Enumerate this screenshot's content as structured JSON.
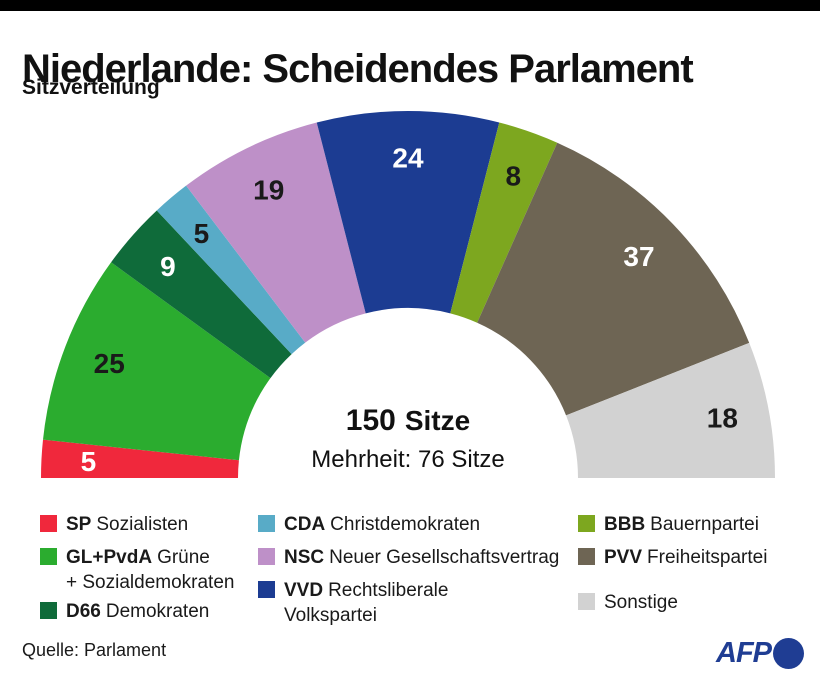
{
  "header": {
    "title": "Niederlande: Scheidendes Parlament",
    "subtitle": "Sitzverteilung"
  },
  "chart_data": {
    "type": "pie",
    "variant": "half-donut-parliament",
    "title": "Niederlande: Scheidendes Parlament — Sitzverteilung",
    "total_seats": 150,
    "parties": [
      "SP",
      "GL+PvdA",
      "D66",
      "CDA",
      "NSC",
      "VVD",
      "BBB",
      "PVV",
      "Sonstige"
    ],
    "values": [
      5,
      25,
      9,
      5,
      19,
      24,
      8,
      37,
      18
    ],
    "colors": [
      "#F0283C",
      "#2BAC2F",
      "#0F6B3A",
      "#58ABC7",
      "#BE90C8",
      "#1C3C92",
      "#7DA71F",
      "#6E6554",
      "#D2D2D2"
    ],
    "label_colors": [
      "#ffffff",
      "#1a1a1a",
      "#ffffff",
      "#1a1a1a",
      "#1a1a1a",
      "#ffffff",
      "#1a1a1a",
      "#ffffff",
      "#1a1a1a"
    ],
    "layout": {
      "direction": "left-to-right",
      "arc_degrees": 180,
      "labels_inside": true
    },
    "center": {
      "total": "150",
      "total_suffix": "Sitze",
      "majority": "Mehrheit: 76 Sitze"
    }
  },
  "legend": {
    "columns": [
      [
        {
          "abbr": "SP",
          "name": "Sozialisten",
          "line2": "",
          "color": "#F0283C"
        },
        {
          "abbr": "GL+PvdA",
          "name": "Grüne",
          "line2": "+ Sozialdemokraten",
          "color": "#2BAC2F"
        },
        {
          "abbr": "D66",
          "name": "Demokraten",
          "line2": "",
          "color": "#0F6B3A"
        }
      ],
      [
        {
          "abbr": "CDA",
          "name": "Christdemokraten",
          "line2": "",
          "color": "#58ABC7"
        },
        {
          "abbr": "NSC",
          "name": "Neuer Gesellschaftsvertrag",
          "line2": "",
          "color": "#BE90C8"
        },
        {
          "abbr": "VVD",
          "name": "Rechtsliberale",
          "line2": "Volkspartei",
          "color": "#1C3C92"
        }
      ],
      [
        {
          "abbr": "BBB",
          "name": "Bauernpartei",
          "line2": "",
          "color": "#7DA71F"
        },
        {
          "abbr": "PVV",
          "name": "Freiheitspartei",
          "line2": "",
          "color": "#6E6554"
        },
        {
          "abbr": "",
          "name": "Sonstige",
          "line2": "",
          "color": "#D2D2D2"
        }
      ]
    ]
  },
  "footer": {
    "source": "Quelle: Parlament",
    "logo_text": "AFP",
    "logo_color": "#1F3D93"
  }
}
